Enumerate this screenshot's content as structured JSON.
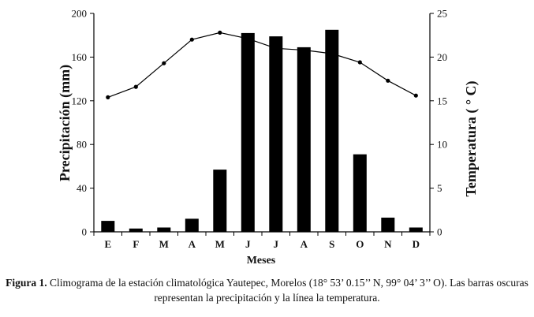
{
  "chart_data": {
    "type": "bar",
    "categories": [
      "E",
      "F",
      "M",
      "A",
      "M",
      "J",
      "J",
      "A",
      "S",
      "O",
      "N",
      "D"
    ],
    "series": [
      {
        "type": "bar",
        "axis": "left",
        "color": "#000000",
        "values": [
          10,
          3,
          4,
          12,
          57,
          182,
          179,
          169,
          185,
          71,
          13,
          4
        ]
      },
      {
        "type": "line",
        "axis": "right",
        "color": "#000000",
        "values": [
          15.4,
          16.6,
          19.3,
          22.0,
          22.8,
          22.1,
          21.0,
          20.8,
          20.4,
          19.4,
          17.3,
          15.6
        ]
      }
    ],
    "xlabel": "Meses",
    "ylabel": "Precipitación (mm)",
    "y2label": "Temperatura   ( ° C)",
    "ylim": [
      0,
      200
    ],
    "y2lim": [
      0,
      25
    ],
    "yticks": [
      "0",
      "40",
      "80",
      "120",
      "160",
      "200"
    ],
    "y2ticks": [
      "0",
      "5",
      "10",
      "15",
      "20",
      "25"
    ],
    "grid": false
  },
  "caption": {
    "label": "Figura 1.",
    "text": " Climograma de la estación climatológica Yautepec, Morelos (18° 53’ 0.15’’ N, 99° 04’ 3’’ O). Las barras oscuras representan la precipitación y la línea la temperatura."
  }
}
